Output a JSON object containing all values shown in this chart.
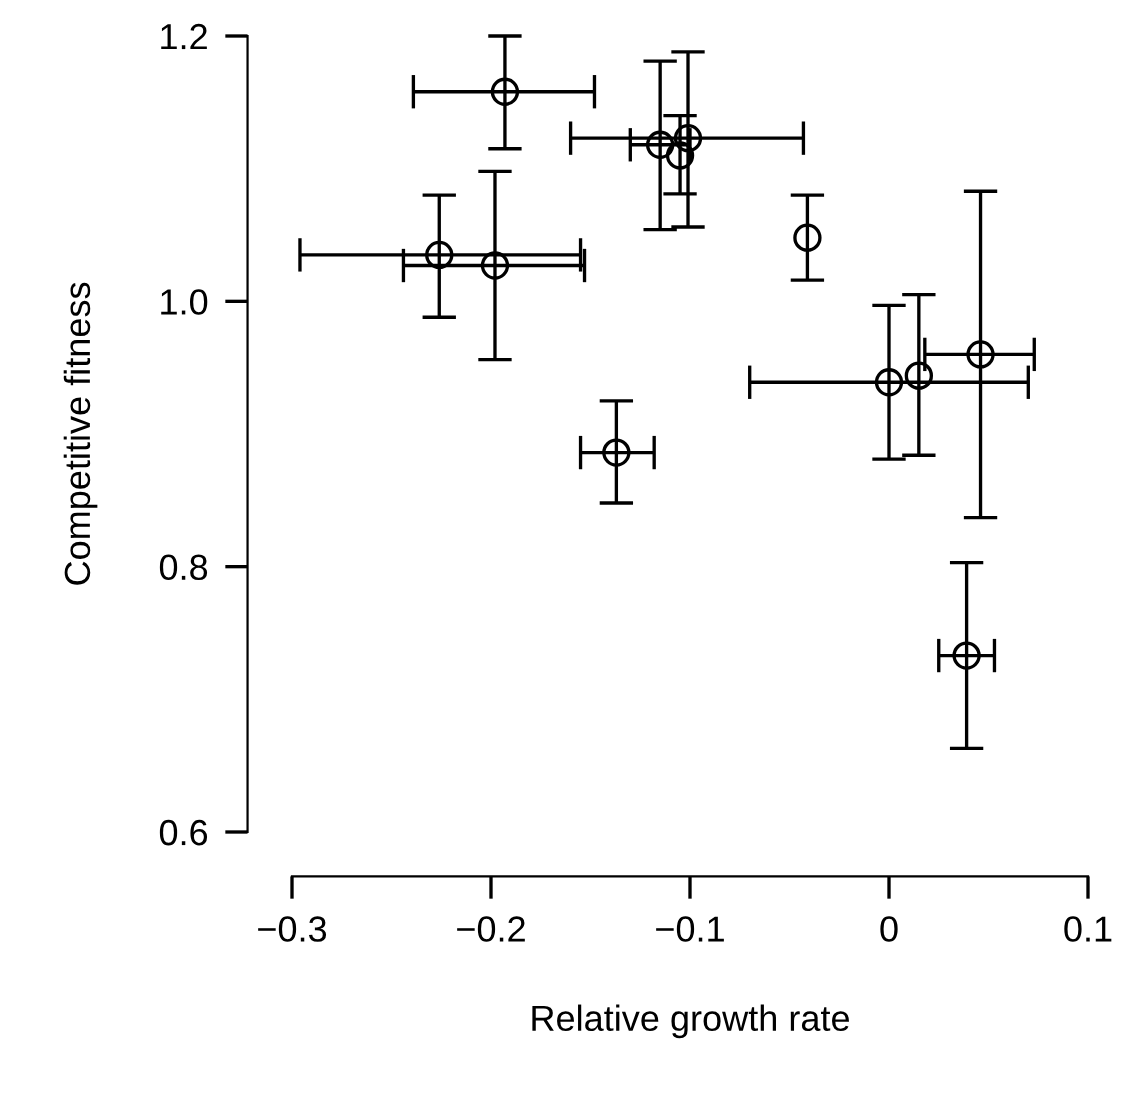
{
  "chart_data": {
    "type": "scatter",
    "xlabel": "Relative growth rate",
    "ylabel": "Competitive fitness",
    "x": [
      -0.193,
      -0.226,
      -0.198,
      -0.137,
      -0.115,
      -0.101,
      -0.105,
      -0.041,
      0.0,
      0.015,
      0.046,
      0.039
    ],
    "values": [
      1.158,
      1.035,
      1.027,
      0.886,
      1.118,
      1.123,
      1.11,
      1.048,
      0.939,
      0.944,
      0.96,
      0.733
    ],
    "errors": [
      [
        1.115,
        1.2
      ],
      [
        0.988,
        1.08
      ],
      [
        0.956,
        1.098
      ],
      [
        0.848,
        0.925
      ],
      [
        1.054,
        1.181
      ],
      [
        1.056,
        1.188
      ],
      [
        1.081,
        1.14
      ],
      [
        1.016,
        1.08
      ],
      [
        0.881,
        0.997
      ],
      [
        0.884,
        1.005
      ],
      [
        0.837,
        1.083
      ],
      [
        0.663,
        0.803
      ]
    ],
    "xerrors": [
      [
        -0.239,
        -0.148
      ],
      [
        -0.296,
        -0.155
      ],
      [
        -0.244,
        -0.153
      ],
      [
        -0.155,
        -0.118
      ],
      [
        -0.13,
        -0.1
      ],
      [
        -0.16,
        -0.043
      ],
      null,
      null,
      [
        -0.07,
        0.07
      ],
      null,
      [
        0.018,
        0.073
      ],
      [
        0.025,
        0.053
      ]
    ],
    "color": "#000000",
    "marker": "circle",
    "xlim": [
      -0.3,
      0.1
    ],
    "ylim": [
      0.6,
      1.2
    ],
    "xticks": [
      {
        "value": -0.3,
        "label": "−0.3"
      },
      {
        "value": -0.2,
        "label": "−0.2"
      },
      {
        "value": -0.1,
        "label": "−0.1"
      },
      0,
      0.1
    ],
    "yticks": [
      0.6,
      0.8,
      {
        "value": 1.0,
        "label": "1.0"
      },
      1.2
    ],
    "grid": false
  }
}
